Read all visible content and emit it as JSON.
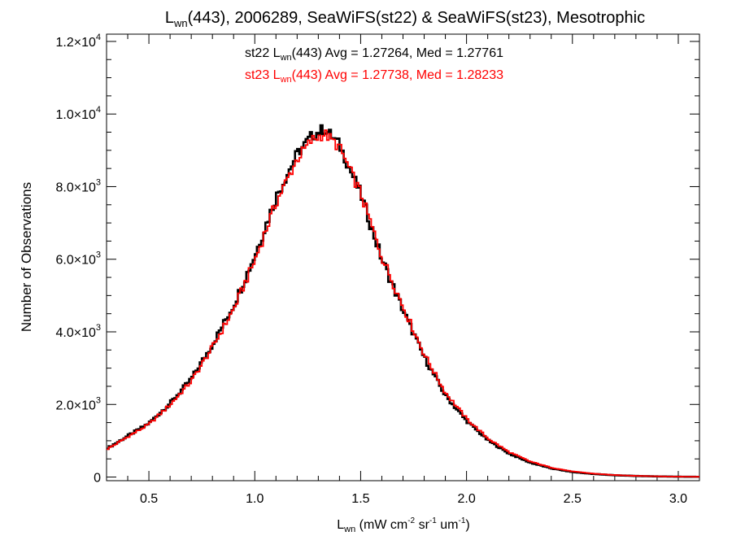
{
  "chart_data": {
    "type": "line",
    "title": {
      "main": "L",
      "sub": "wn",
      "rest": "(443), 2006289, SeaWiFS(st22) & SeaWiFS(st23), Mesotrophic"
    },
    "xlabel": {
      "main": "L",
      "sub": "wn",
      "units": " (mW cm",
      "units_sup1": "-2",
      "units_mid": " sr",
      "units_sup2": "-1",
      "units_mid2": " um",
      "units_sup3": "-1",
      "units_end": ")"
    },
    "ylabel": "Number of Observations",
    "xlim": [
      0.3,
      3.1
    ],
    "ylim": [
      -100,
      12200
    ],
    "x_ticks": [
      {
        "value": 0.5,
        "label": "0.5"
      },
      {
        "value": 1.0,
        "label": "1.0"
      },
      {
        "value": 1.5,
        "label": "1.5"
      },
      {
        "value": 2.0,
        "label": "2.0"
      },
      {
        "value": 2.5,
        "label": "2.5"
      },
      {
        "value": 3.0,
        "label": "3.0"
      }
    ],
    "y_ticks": [
      {
        "value": 0,
        "mant": "0",
        "exp": ""
      },
      {
        "value": 2000,
        "mant": "2.0×10",
        "exp": "3"
      },
      {
        "value": 4000,
        "mant": "4.0×10",
        "exp": "3"
      },
      {
        "value": 6000,
        "mant": "6.0×10",
        "exp": "3"
      },
      {
        "value": 8000,
        "mant": "8.0×10",
        "exp": "3"
      },
      {
        "value": 10000,
        "mant": "1.0×10",
        "exp": "4"
      },
      {
        "value": 12000,
        "mant": "1.2×10",
        "exp": "4"
      }
    ],
    "grid": false,
    "legend_placement": "top-center",
    "series": [
      {
        "legend": {
          "a": "st22 L",
          "sub": "wn",
          "b": "(443) Avg = 1.27264, Med = 1.27761"
        },
        "color": "#000000",
        "points": [
          [
            0.3,
            780
          ],
          [
            0.35,
            950
          ],
          [
            0.4,
            1130
          ],
          [
            0.5,
            1480
          ],
          [
            0.6,
            2030
          ],
          [
            0.7,
            2700
          ],
          [
            0.8,
            3650
          ],
          [
            0.9,
            4730
          ],
          [
            1.0,
            6100
          ],
          [
            1.1,
            7700
          ],
          [
            1.2,
            8900
          ],
          [
            1.27,
            9400
          ],
          [
            1.33,
            9600
          ],
          [
            1.4,
            9150
          ],
          [
            1.5,
            7800
          ],
          [
            1.6,
            6000
          ],
          [
            1.7,
            4600
          ],
          [
            1.8,
            3300
          ],
          [
            1.9,
            2250
          ],
          [
            2.0,
            1550
          ],
          [
            2.1,
            1020
          ],
          [
            2.2,
            650
          ],
          [
            2.3,
            400
          ],
          [
            2.4,
            240
          ],
          [
            2.5,
            140
          ],
          [
            2.6,
            85
          ],
          [
            2.7,
            50
          ],
          [
            2.8,
            30
          ],
          [
            2.9,
            18
          ],
          [
            3.0,
            10
          ],
          [
            3.1,
            6
          ]
        ]
      },
      {
        "legend": {
          "a": "st23 L",
          "sub": "wn",
          "b": "(443) Avg = 1.27738, Med = 1.28233"
        },
        "color": "#ff0000",
        "points": [
          [
            0.3,
            760
          ],
          [
            0.35,
            930
          ],
          [
            0.4,
            1110
          ],
          [
            0.5,
            1450
          ],
          [
            0.6,
            1990
          ],
          [
            0.7,
            2640
          ],
          [
            0.8,
            3570
          ],
          [
            0.9,
            4620
          ],
          [
            1.0,
            5960
          ],
          [
            1.1,
            7550
          ],
          [
            1.2,
            8760
          ],
          [
            1.27,
            9280
          ],
          [
            1.33,
            9460
          ],
          [
            1.4,
            9080
          ],
          [
            1.5,
            7820
          ],
          [
            1.6,
            6080
          ],
          [
            1.7,
            4700
          ],
          [
            1.8,
            3390
          ],
          [
            1.9,
            2330
          ],
          [
            2.0,
            1610
          ],
          [
            2.1,
            1070
          ],
          [
            2.2,
            690
          ],
          [
            2.3,
            430
          ],
          [
            2.4,
            260
          ],
          [
            2.5,
            155
          ],
          [
            2.6,
            95
          ],
          [
            2.7,
            55
          ],
          [
            2.8,
            33
          ],
          [
            2.9,
            20
          ],
          [
            3.0,
            11
          ],
          [
            3.1,
            7
          ]
        ]
      }
    ]
  }
}
